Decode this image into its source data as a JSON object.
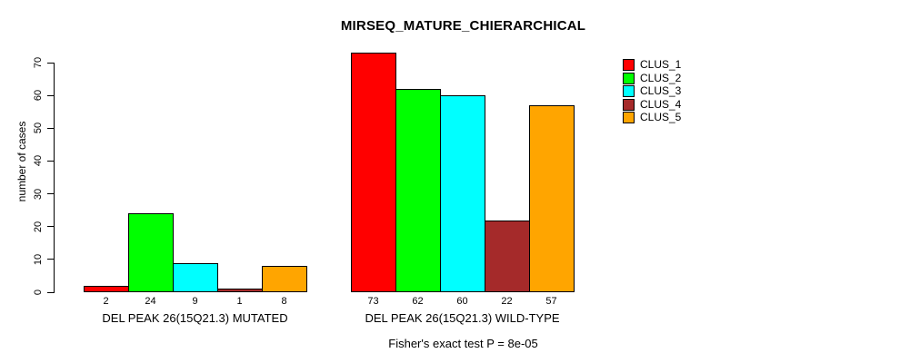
{
  "title": "MIRSEQ_MATURE_CHIERARCHICAL",
  "annotation": "Fisher's exact test P = 8e-05",
  "y_axis": {
    "label": "number of cases",
    "ticks": [
      0,
      10,
      20,
      30,
      40,
      50,
      60,
      70
    ]
  },
  "legend": {
    "items": [
      {
        "label": "CLUS_1",
        "color": "#FF0000"
      },
      {
        "label": "CLUS_2",
        "color": "#00FF00"
      },
      {
        "label": "CLUS_3",
        "color": "#00FFFF"
      },
      {
        "label": "CLUS_4",
        "color": "#A52A2A"
      },
      {
        "label": "CLUS_5",
        "color": "#FFA500"
      }
    ]
  },
  "chart_data": {
    "type": "bar",
    "title": "MIRSEQ_MATURE_CHIERARCHICAL",
    "categories": [
      "DEL PEAK 26(15Q21.3) MUTATED",
      "DEL PEAK 26(15Q21.3) WILD-TYPE"
    ],
    "series": [
      {
        "name": "CLUS_1",
        "color": "#FF0000",
        "values": [
          2,
          73
        ]
      },
      {
        "name": "CLUS_2",
        "color": "#00FF00",
        "values": [
          24,
          62
        ]
      },
      {
        "name": "CLUS_3",
        "color": "#00FFFF",
        "values": [
          9,
          60
        ]
      },
      {
        "name": "CLUS_4",
        "color": "#A52A2A",
        "values": [
          1,
          22
        ]
      },
      {
        "name": "CLUS_5",
        "color": "#FFA500",
        "values": [
          8,
          57
        ]
      }
    ],
    "bar_value_labels": [
      [
        2,
        24,
        9,
        1,
        8
      ],
      [
        73,
        62,
        60,
        22,
        57
      ]
    ],
    "ylabel": "number of cases",
    "ylim": [
      0,
      70
    ],
    "yticks": [
      0,
      10,
      20,
      30,
      40,
      50,
      60,
      70
    ],
    "grid": false,
    "legend_position": "top-right",
    "annotation": "Fisher's exact test P = 8e-05"
  }
}
